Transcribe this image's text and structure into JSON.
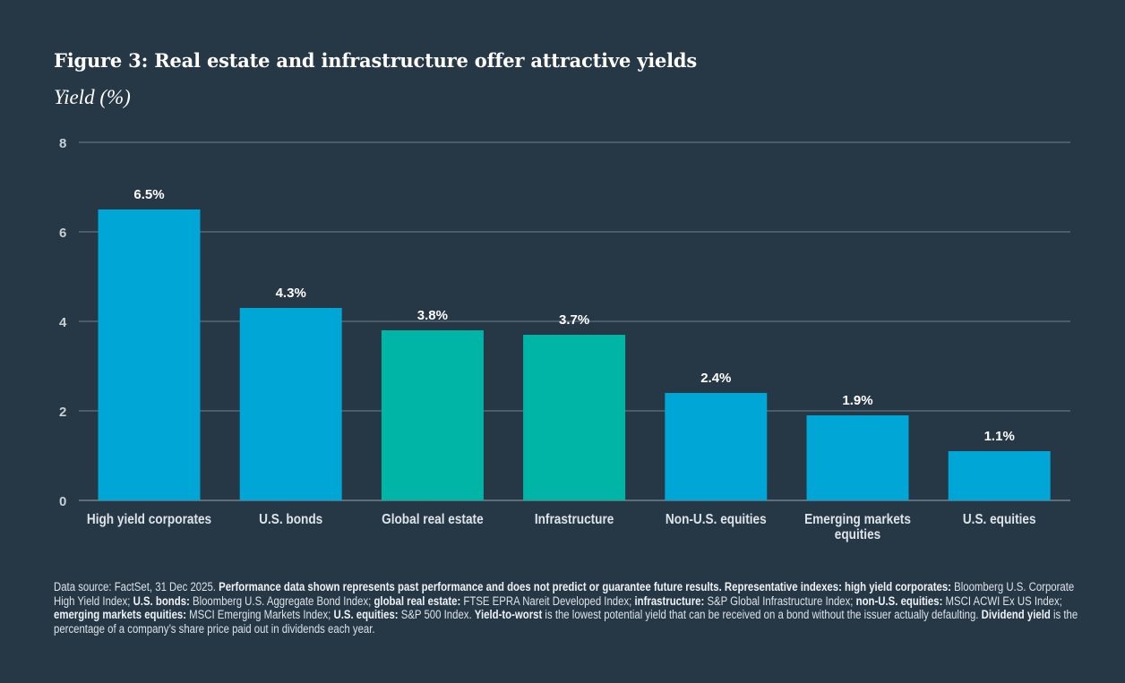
{
  "title": "Figure 3: Real estate and infrastructure offer attractive yields",
  "colors": {
    "background": "#263746",
    "blue": "#00a6d6",
    "teal": "#00b5a6",
    "grid": "#6f7f8c"
  },
  "chart_data": {
    "type": "bar",
    "title": "Figure 3: Real estate and infrastructure offer attractive yields",
    "ylabel": "Yield (%)",
    "xlabel": "",
    "ylim": [
      0,
      8
    ],
    "yticks": [
      0,
      2,
      4,
      6,
      8
    ],
    "grid": true,
    "categories": [
      "High yield corporates",
      "U.S. bonds",
      "Global real estate",
      "Infrastructure",
      "Non-U.S. equities",
      "Emerging markets equities",
      "U.S. equities"
    ],
    "category_lines": [
      [
        "High yield corporates"
      ],
      [
        "U.S. bonds"
      ],
      [
        "Global real estate"
      ],
      [
        "Infrastructure"
      ],
      [
        "Non-U.S. equities"
      ],
      [
        "Emerging markets",
        "equities"
      ],
      [
        "U.S. equities"
      ]
    ],
    "values": [
      6.5,
      4.3,
      3.8,
      3.7,
      2.4,
      1.9,
      1.1
    ],
    "data_labels": [
      "6.5%",
      "4.3%",
      "3.8%",
      "3.7%",
      "2.4%",
      "1.9%",
      "1.1%"
    ],
    "bar_colors": [
      "#00a6d6",
      "#00a6d6",
      "#00b5a6",
      "#00b5a6",
      "#00a6d6",
      "#00a6d6",
      "#00a6d6"
    ]
  },
  "footnote": [
    {
      "t": "Data source: FactSet, 31 Dec 2025. ",
      "b": false
    },
    {
      "t": "Performance data shown represents past performance and does not predict or guarantee future results. Representative indexes: high yield corporates:",
      "b": true
    },
    {
      "t": " Bloomberg U.S. Corporate High Yield Index; ",
      "b": false
    },
    {
      "t": "U.S. bonds:",
      "b": true
    },
    {
      "t": " Bloomberg U.S. Aggregate Bond Index; ",
      "b": false
    },
    {
      "t": "global real estate:",
      "b": true
    },
    {
      "t": " FTSE EPRA Nareit Developed Index; ",
      "b": false
    },
    {
      "t": "infrastructure:",
      "b": true
    },
    {
      "t": " S&P Global Infrastructure Index; ",
      "b": false
    },
    {
      "t": "non-U.S. equities:",
      "b": true
    },
    {
      "t": " MSCI ACWI Ex US Index; ",
      "b": false
    },
    {
      "t": "emerging markets equities:",
      "b": true
    },
    {
      "t": " MSCI Emerging Markets Index; ",
      "b": false
    },
    {
      "t": "U.S. equities:",
      "b": true
    },
    {
      "t": " S&P 500 Index. ",
      "b": false
    },
    {
      "t": "Yield-to-worst",
      "b": true
    },
    {
      "t": " is the lowest potential yield that can be received on a bond without the issuer actually defaulting. ",
      "b": false
    },
    {
      "t": "Dividend yield",
      "b": true
    },
    {
      "t": " is the percentage of a company’s share price paid out in dividends each year.",
      "b": false
    }
  ]
}
